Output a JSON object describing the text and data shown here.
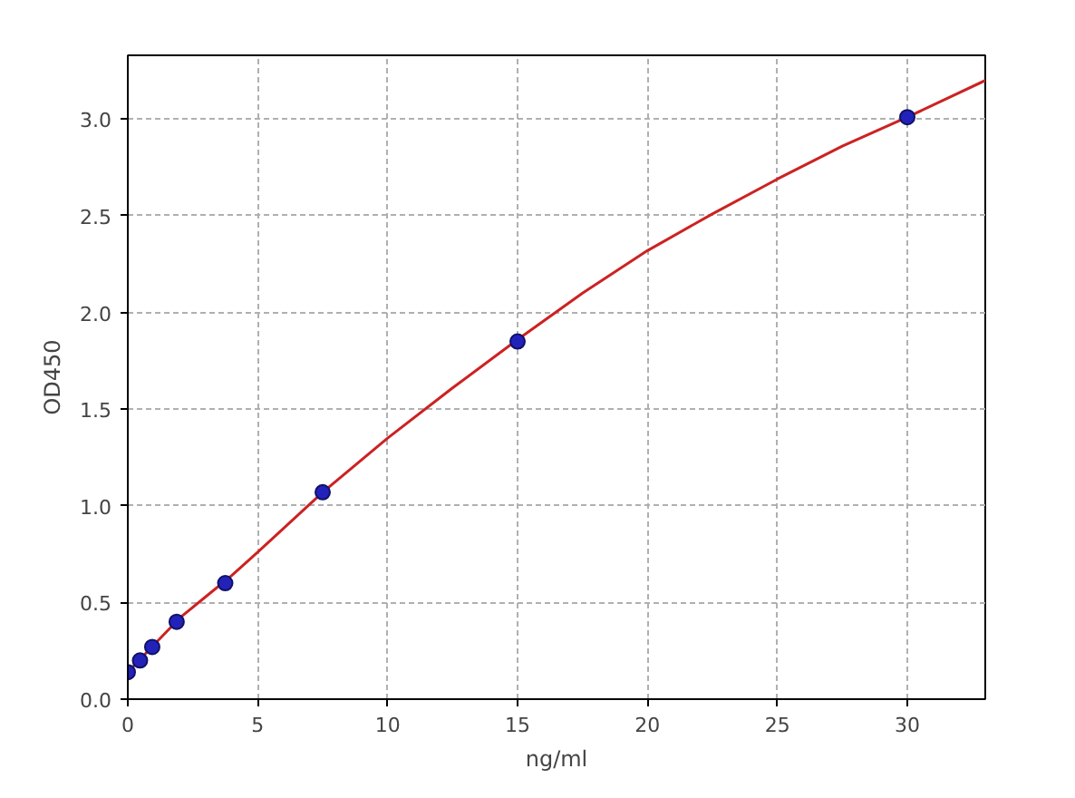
{
  "chart_data": {
    "type": "scatter",
    "xlabel": "ng/ml",
    "ylabel": "OD450",
    "xlim": [
      0,
      33
    ],
    "ylim": [
      0,
      3.33
    ],
    "xticks": [
      0,
      5,
      10,
      15,
      20,
      25,
      30
    ],
    "yticks": [
      {
        "value": 0,
        "label": "0.0"
      },
      {
        "value": 0.5,
        "label": "0.5"
      },
      {
        "value": 1,
        "label": "1.0"
      },
      {
        "value": 1.5,
        "label": "1.5"
      },
      {
        "value": 2,
        "label": "2.0"
      },
      {
        "value": 2.5,
        "label": "2.5"
      },
      {
        "value": 3,
        "label": "3.0"
      }
    ],
    "grid": true,
    "series": [
      {
        "type": "line",
        "marker": "none",
        "color": "#cc2222",
        "x": [
          0,
          1,
          2,
          3,
          4,
          5,
          7.5,
          10,
          12.5,
          15,
          17.5,
          20,
          22.5,
          25,
          27.5,
          30,
          33
        ],
        "values": [
          0.14,
          0.28,
          0.42,
          0.53,
          0.64,
          0.76,
          1.07,
          1.35,
          1.61,
          1.86,
          2.1,
          2.32,
          2.51,
          2.69,
          2.86,
          3.01,
          3.2
        ]
      },
      {
        "marker": "circle",
        "color": "#2222bb",
        "x": [
          0,
          0.47,
          0.94,
          1.88,
          3.75,
          7.5,
          15,
          30
        ],
        "values": [
          0.14,
          0.2,
          0.27,
          0.4,
          0.6,
          1.07,
          1.85,
          3.01
        ]
      }
    ]
  }
}
